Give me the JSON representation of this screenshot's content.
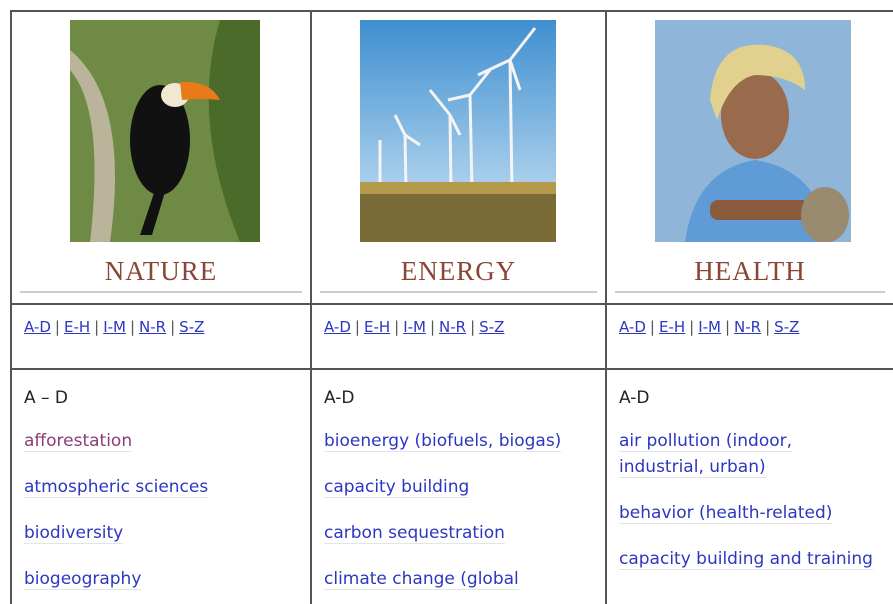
{
  "separator": "|",
  "columns": [
    {
      "title": "NATURE",
      "nav": [
        "A-D",
        "E-H",
        "I-M",
        "N-R",
        "S-Z"
      ],
      "section": "A – D",
      "links": [
        "afforestation",
        "atmospheric sciences",
        "biodiversity",
        "biogeography"
      ]
    },
    {
      "title": "ENERGY",
      "nav": [
        "A-D",
        "E-H",
        "I-M",
        "N-R",
        "S-Z"
      ],
      "section": "A-D",
      "links": [
        "bioenergy (biofuels, biogas)",
        "capacity building",
        "carbon sequestration",
        "climate change (global"
      ]
    },
    {
      "title": "HEALTH",
      "nav": [
        "A-D",
        "E-H",
        "I-M",
        "N-R",
        "S-Z"
      ],
      "section": "A-D",
      "links": [
        "air pollution (indoor, industrial, urban)",
        "behavior (health-related)",
        "capacity building and training"
      ]
    }
  ]
}
